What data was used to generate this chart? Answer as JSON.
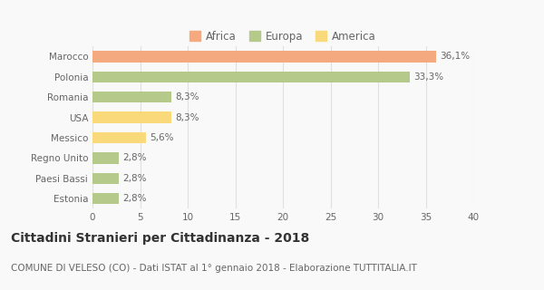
{
  "categories": [
    "Marocco",
    "Polonia",
    "Romania",
    "USA",
    "Messico",
    "Regno Unito",
    "Paesi Bassi",
    "Estonia"
  ],
  "values": [
    36.1,
    33.3,
    8.3,
    8.3,
    5.6,
    2.8,
    2.8,
    2.8
  ],
  "labels": [
    "36,1%",
    "33,3%",
    "8,3%",
    "8,3%",
    "5,6%",
    "2,8%",
    "2,8%",
    "2,8%"
  ],
  "colors": [
    "#F4A97F",
    "#B5C98A",
    "#B5C98A",
    "#F9D97A",
    "#F9D97A",
    "#B5C98A",
    "#B5C98A",
    "#B5C98A"
  ],
  "legend": [
    {
      "label": "Africa",
      "color": "#F4A97F"
    },
    {
      "label": "Europa",
      "color": "#B5C98A"
    },
    {
      "label": "America",
      "color": "#F9D97A"
    }
  ],
  "title": "Cittadini Stranieri per Cittadinanza - 2018",
  "subtitle": "COMUNE DI VELESO (CO) - Dati ISTAT al 1° gennaio 2018 - Elaborazione TUTTITALIA.IT",
  "xlim": [
    0,
    40
  ],
  "xticks": [
    0,
    5,
    10,
    15,
    20,
    25,
    30,
    35,
    40
  ],
  "background_color": "#f9f9f9",
  "grid_color": "#e0e0e0",
  "title_fontsize": 10,
  "subtitle_fontsize": 7.5,
  "label_fontsize": 7.5,
  "tick_fontsize": 7.5,
  "legend_fontsize": 8.5,
  "bar_height": 0.55
}
